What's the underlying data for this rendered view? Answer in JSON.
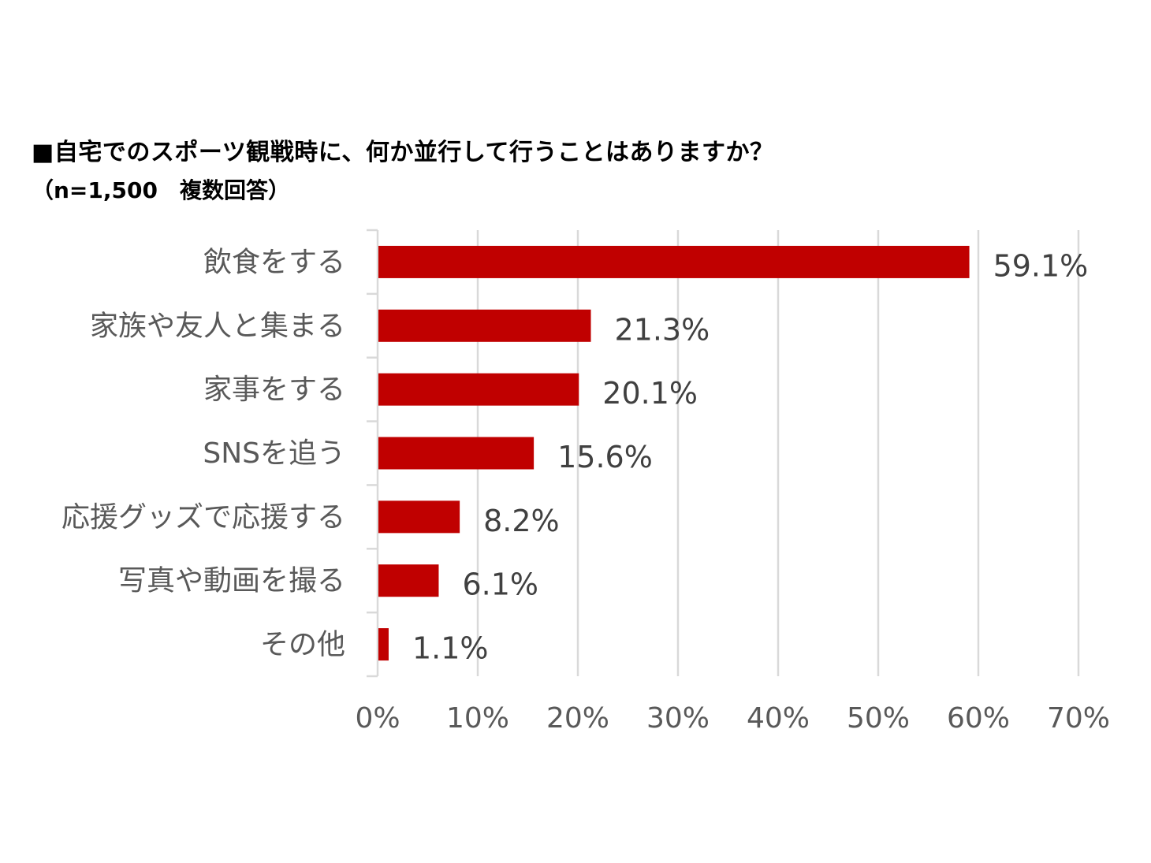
{
  "title": "■自宅でのスポーツ観戦時に、何か並行して行うことはありますか？",
  "subtitle": "（n=1,500　複数回答）",
  "chart_data": {
    "type": "bar",
    "orientation": "horizontal",
    "categories": [
      "飲食をする",
      "家族や友人と集まる",
      "家事をする",
      "SNSを追う",
      "応援グッズで応援する",
      "写真や動画を撮る",
      "その他"
    ],
    "values": [
      59.1,
      21.3,
      20.1,
      15.6,
      8.2,
      6.1,
      1.1
    ],
    "value_labels": [
      "59.1%",
      "21.3%",
      "20.1%",
      "15.6%",
      "8.2%",
      "6.1%",
      "1.1%"
    ],
    "xlim": [
      0,
      70
    ],
    "x_ticks": [
      0,
      10,
      20,
      30,
      40,
      50,
      60,
      70
    ],
    "x_tick_labels": [
      "0%",
      "10%",
      "20%",
      "30%",
      "40%",
      "50%",
      "60%",
      "70%"
    ],
    "grid": true,
    "bar_color": "#C00000"
  }
}
